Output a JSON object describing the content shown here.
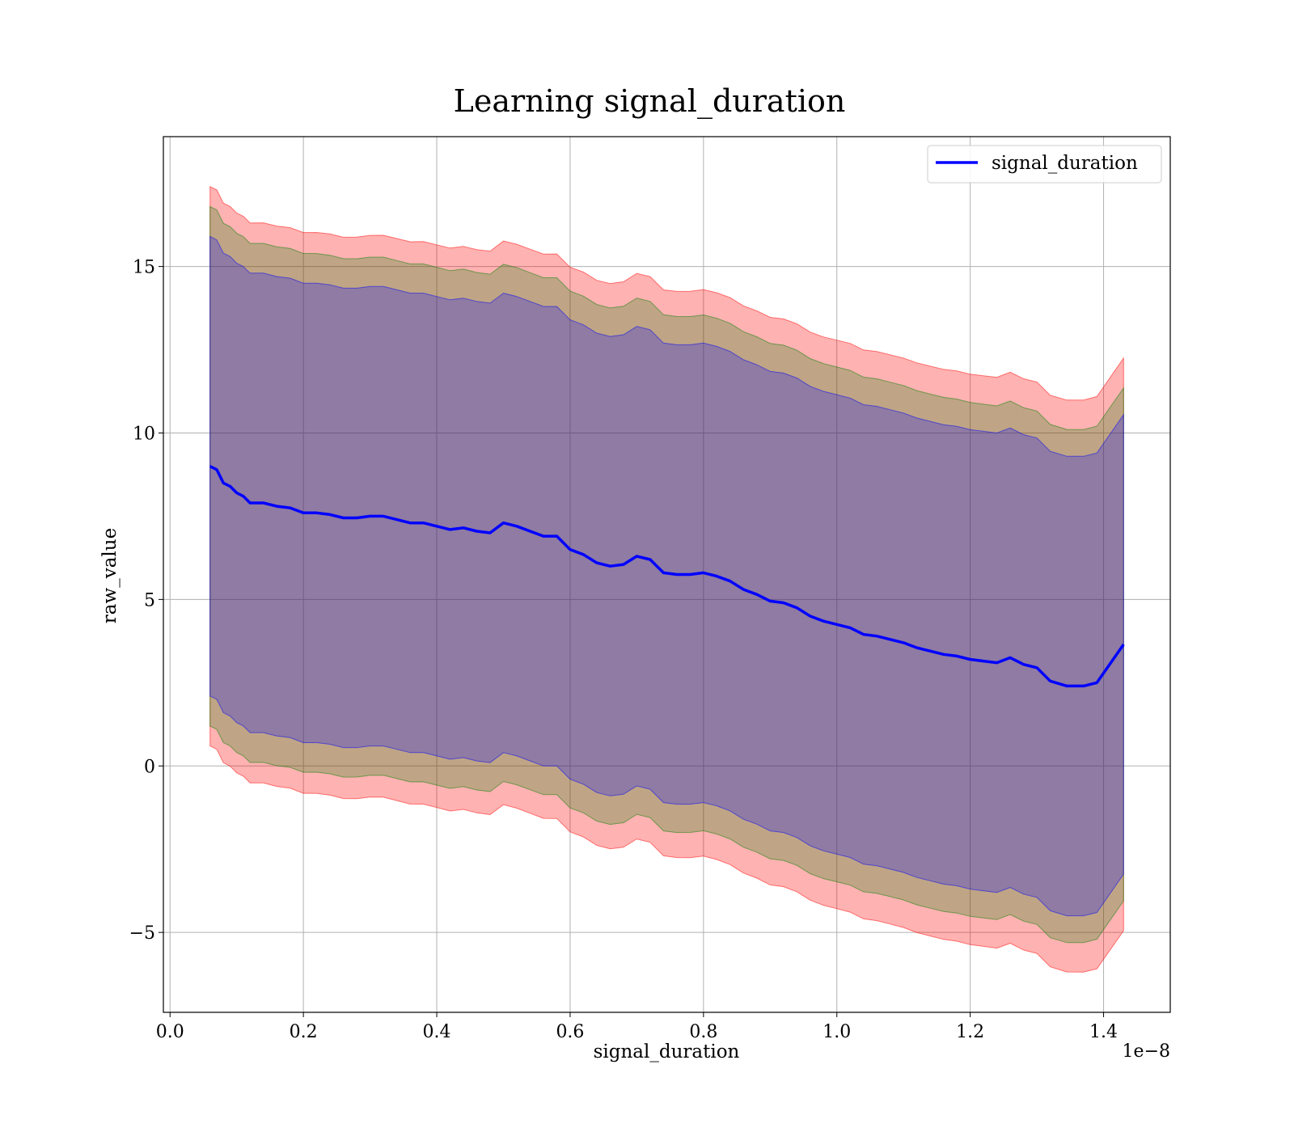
{
  "chart_data": {
    "type": "line",
    "title": "Learning signal_duration",
    "xlabel": "signal_duration",
    "ylabel": "raw_value",
    "x_offset_label": "1e−8",
    "xlim": [
      -0.01,
      1.5
    ],
    "ylim": [
      -7.4,
      18.9
    ],
    "x_ticks": [
      0.0,
      0.2,
      0.4,
      0.6,
      0.8,
      1.0,
      1.2,
      1.4
    ],
    "x_tick_labels": [
      "0.0",
      "0.2",
      "0.4",
      "0.6",
      "0.8",
      "1.0",
      "1.2",
      "1.4"
    ],
    "y_ticks": [
      -5,
      0,
      5,
      10,
      15
    ],
    "y_tick_labels": [
      "−5",
      "0",
      "5",
      "10",
      "15"
    ],
    "grid": true,
    "legend_position": "top-right",
    "series": [
      {
        "name": "signal_duration",
        "color": "#0000ff",
        "x": [
          0.06,
          0.07,
          0.08,
          0.09,
          0.1,
          0.11,
          0.12,
          0.14,
          0.16,
          0.18,
          0.2,
          0.22,
          0.24,
          0.26,
          0.28,
          0.3,
          0.32,
          0.34,
          0.36,
          0.38,
          0.4,
          0.42,
          0.44,
          0.46,
          0.48,
          0.5,
          0.52,
          0.54,
          0.56,
          0.58,
          0.6,
          0.62,
          0.64,
          0.66,
          0.68,
          0.7,
          0.72,
          0.74,
          0.76,
          0.78,
          0.8,
          0.82,
          0.84,
          0.86,
          0.88,
          0.9,
          0.92,
          0.94,
          0.96,
          0.98,
          1.0,
          1.02,
          1.04,
          1.06,
          1.08,
          1.1,
          1.12,
          1.14,
          1.16,
          1.18,
          1.2,
          1.22,
          1.24,
          1.26,
          1.28,
          1.3,
          1.32,
          1.345,
          1.37,
          1.39,
          1.43
        ],
        "values": [
          9.0,
          8.9,
          8.5,
          8.4,
          8.2,
          8.1,
          7.9,
          7.9,
          7.8,
          7.75,
          7.6,
          7.6,
          7.55,
          7.45,
          7.45,
          7.5,
          7.5,
          7.4,
          7.3,
          7.3,
          7.2,
          7.1,
          7.15,
          7.05,
          7.0,
          7.3,
          7.2,
          7.05,
          6.9,
          6.9,
          6.5,
          6.35,
          6.1,
          6.0,
          6.05,
          6.3,
          6.2,
          5.8,
          5.75,
          5.75,
          5.8,
          5.7,
          5.55,
          5.3,
          5.15,
          4.95,
          4.9,
          4.75,
          4.5,
          4.35,
          4.25,
          4.15,
          3.95,
          3.9,
          3.8,
          3.7,
          3.55,
          3.45,
          3.35,
          3.3,
          3.2,
          3.15,
          3.1,
          3.25,
          3.05,
          2.95,
          2.55,
          2.4,
          2.4,
          2.5,
          3.65
        ]
      }
    ],
    "bands": [
      {
        "color": "#ff0000",
        "opacity": 0.3,
        "halfwidth_start": 8.4,
        "halfwidth_end": 8.6
      },
      {
        "color": "#008000",
        "opacity": 0.25,
        "halfwidth_start": 7.8,
        "halfwidth_end": 7.7
      },
      {
        "color": "#0000ff",
        "opacity": 0.25,
        "halfwidth_start": 6.9,
        "halfwidth_end": 6.9
      }
    ]
  }
}
